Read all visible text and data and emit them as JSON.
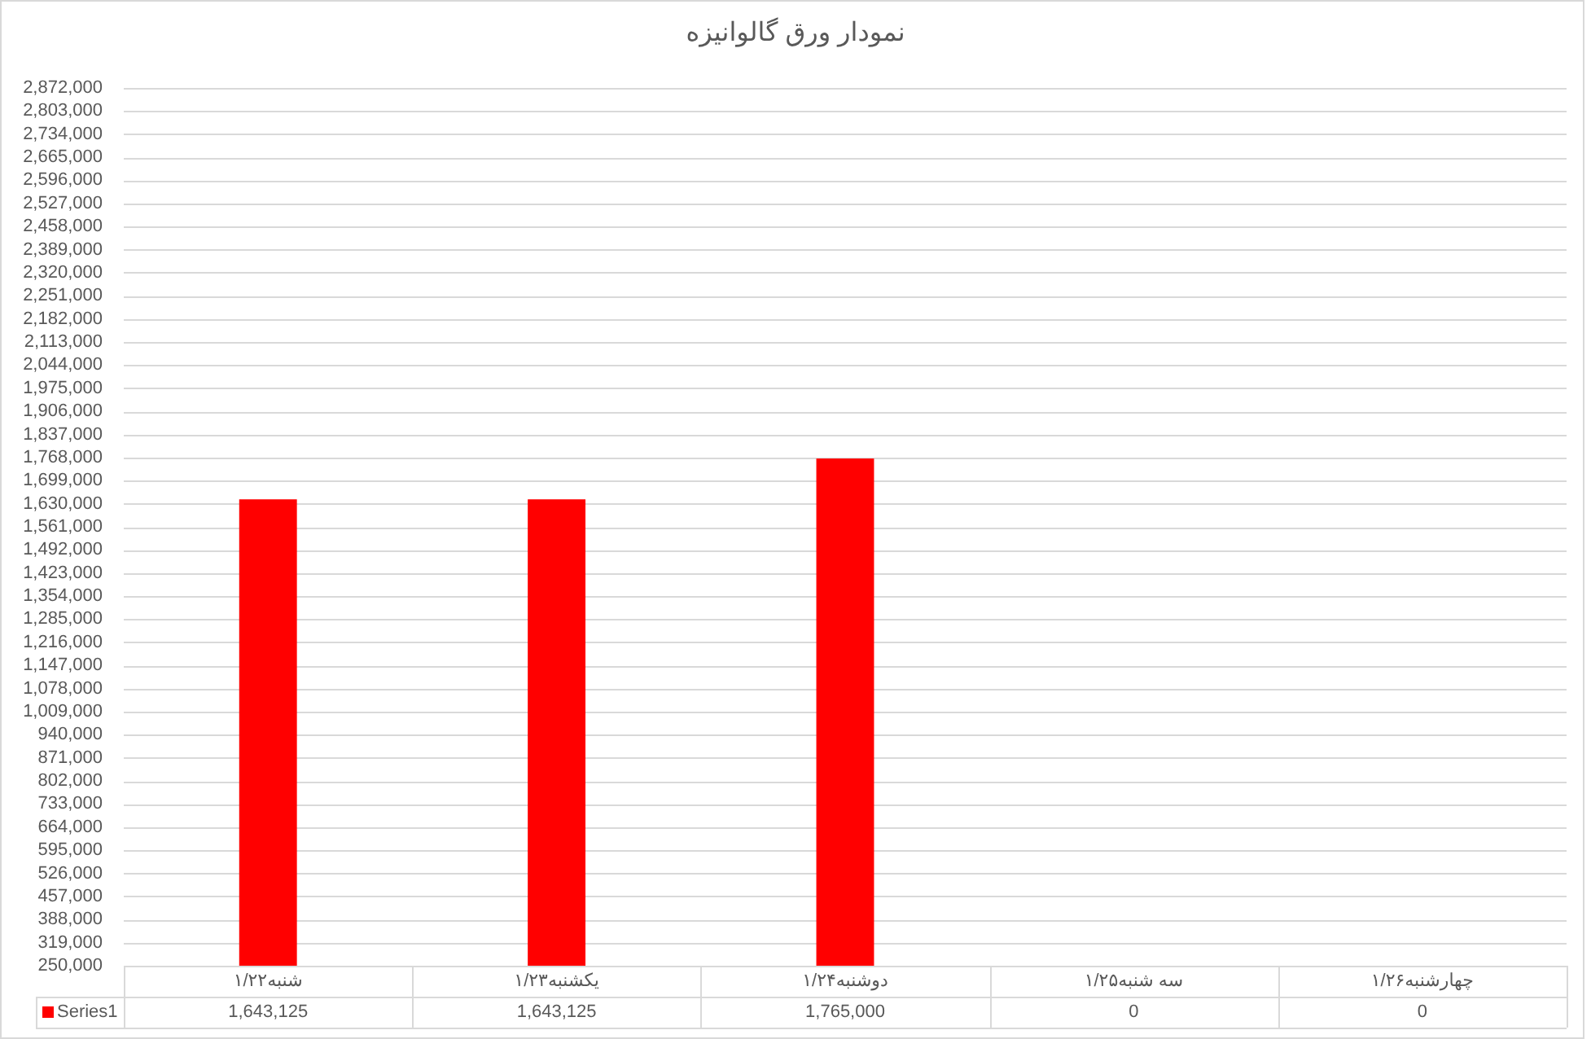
{
  "chart_data": {
    "type": "bar",
    "title": "نمودار ورق گالوانیزه",
    "categories": [
      "شنبه۱/۲۲",
      "یکشنبه۱/۲۳",
      "دوشنبه۱/۲۴",
      "سه شنبه۱/۲۵",
      "چهارشنبه۱/۲۶"
    ],
    "series": [
      {
        "name": "Series1",
        "color": "#ff0000",
        "values": [
          1643125,
          1643125,
          1765000,
          null,
          null
        ],
        "value_labels": [
          "1,643,125",
          "1,643,125",
          "1,765,000",
          "0",
          "0"
        ]
      }
    ],
    "ylim": [
      250000,
      2872000
    ],
    "yticks": [
      {
        "value": 250000,
        "label": "250,000"
      },
      {
        "value": 319000,
        "label": "319,000"
      },
      {
        "value": 388000,
        "label": "388,000"
      },
      {
        "value": 457000,
        "label": "457,000"
      },
      {
        "value": 526000,
        "label": "526,000"
      },
      {
        "value": 595000,
        "label": "595,000"
      },
      {
        "value": 664000,
        "label": "664,000"
      },
      {
        "value": 733000,
        "label": "733,000"
      },
      {
        "value": 802000,
        "label": "802,000"
      },
      {
        "value": 871000,
        "label": "871,000"
      },
      {
        "value": 940000,
        "label": "940,000"
      },
      {
        "value": 1009000,
        "label": "1,009,000"
      },
      {
        "value": 1078000,
        "label": "1,078,000"
      },
      {
        "value": 1147000,
        "label": "1,147,000"
      },
      {
        "value": 1216000,
        "label": "1,216,000"
      },
      {
        "value": 1285000,
        "label": "1,285,000"
      },
      {
        "value": 1354000,
        "label": "1,354,000"
      },
      {
        "value": 1423000,
        "label": "1,423,000"
      },
      {
        "value": 1492000,
        "label": "1,492,000"
      },
      {
        "value": 1561000,
        "label": "1,561,000"
      },
      {
        "value": 1630000,
        "label": "1,630,000"
      },
      {
        "value": 1699000,
        "label": "1,699,000"
      },
      {
        "value": 1768000,
        "label": "1,768,000"
      },
      {
        "value": 1837000,
        "label": "1,837,000"
      },
      {
        "value": 1906000,
        "label": "1,906,000"
      },
      {
        "value": 1975000,
        "label": "1,975,000"
      },
      {
        "value": 2044000,
        "label": "2,044,000"
      },
      {
        "value": 2113000,
        "label": "2,113,000"
      },
      {
        "value": 2182000,
        "label": "2,182,000"
      },
      {
        "value": 2251000,
        "label": "2,251,000"
      },
      {
        "value": 2320000,
        "label": "2,320,000"
      },
      {
        "value": 2389000,
        "label": "2,389,000"
      },
      {
        "value": 2458000,
        "label": "2,458,000"
      },
      {
        "value": 2527000,
        "label": "2,527,000"
      },
      {
        "value": 2596000,
        "label": "2,596,000"
      },
      {
        "value": 2665000,
        "label": "2,665,000"
      },
      {
        "value": 2734000,
        "label": "2,734,000"
      },
      {
        "value": 2803000,
        "label": "2,803,000"
      },
      {
        "value": 2872000,
        "label": "2,872,000"
      }
    ],
    "grid": "y",
    "legend": "bottom left"
  }
}
